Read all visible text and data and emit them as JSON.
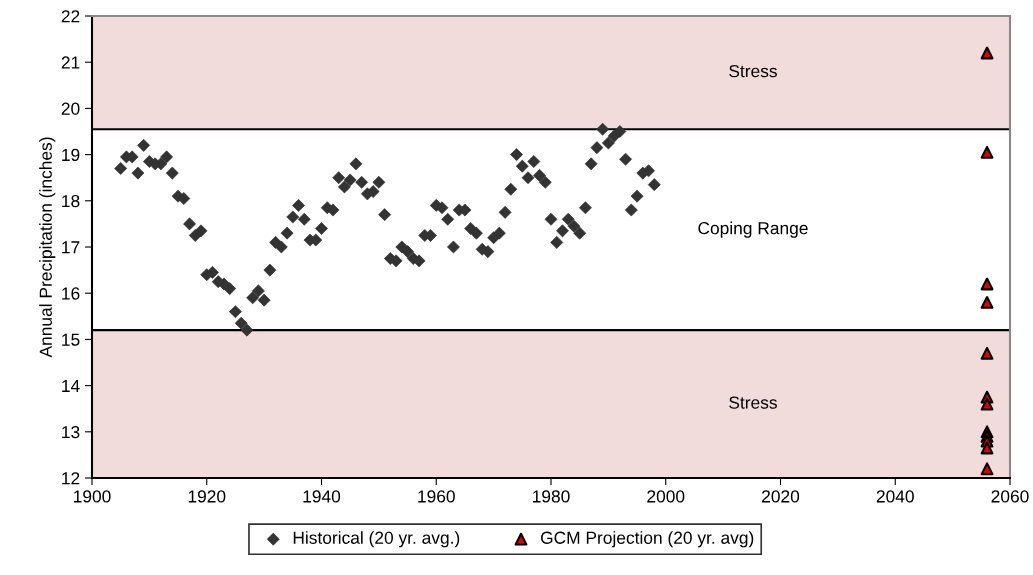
{
  "chart_data": {
    "type": "scatter",
    "ylabel": "Annual Precipitation (inches)",
    "xlim": [
      1900,
      2060
    ],
    "xticks": [
      1900,
      1920,
      1940,
      1960,
      1980,
      2000,
      2020,
      2040,
      2060
    ],
    "ylim": [
      12,
      22
    ],
    "yticks": [
      12,
      13,
      14,
      15,
      16,
      17,
      18,
      19,
      20,
      21,
      22
    ],
    "grid": false,
    "legend": "bottom",
    "annotations": [
      "Coping Range"
    ],
    "bands": [
      {
        "axis": "y",
        "from": 19.55,
        "to": 22,
        "label": "Stress",
        "color": "#f2dcdb"
      },
      {
        "axis": "y",
        "from": 12,
        "to": 15.2,
        "label": "Stress",
        "color": "#f2dcdb"
      }
    ],
    "ref_lines": [
      {
        "axis": "y",
        "value": 19.55,
        "color": "#000000",
        "line_style": "solid"
      },
      {
        "axis": "y",
        "value": 15.2,
        "color": "#000000",
        "line_style": "solid"
      }
    ],
    "series": [
      {
        "name": "Historical (20 yr. avg.)",
        "color": "#333333",
        "marker": "diamond",
        "x": [
          1905,
          1906,
          1907,
          1908,
          1909,
          1910,
          1911,
          1912,
          1913,
          1914,
          1915,
          1916,
          1917,
          1918,
          1919,
          1920,
          1921,
          1922,
          1923,
          1924,
          1925,
          1926,
          1927,
          1928,
          1929,
          1930,
          1931,
          1932,
          1933,
          1934,
          1935,
          1936,
          1937,
          1938,
          1939,
          1940,
          1941,
          1942,
          1943,
          1944,
          1945,
          1946,
          1947,
          1948,
          1949,
          1950,
          1951,
          1952,
          1953,
          1954,
          1955,
          1956,
          1957,
          1958,
          1959,
          1960,
          1961,
          1962,
          1963,
          1964,
          1965,
          1966,
          1967,
          1968,
          1969,
          1970,
          1971,
          1972,
          1973,
          1974,
          1975,
          1976,
          1977,
          1978,
          1979,
          1980,
          1981,
          1982,
          1983,
          1984,
          1985,
          1986,
          1987,
          1988,
          1989,
          1990,
          1991,
          1992,
          1993,
          1994,
          1995,
          1996,
          1997,
          1998
        ],
        "values": [
          18.7,
          18.95,
          18.95,
          18.6,
          19.2,
          18.85,
          18.8,
          18.8,
          18.95,
          18.6,
          18.1,
          18.05,
          17.5,
          17.25,
          17.35,
          16.4,
          16.45,
          16.25,
          16.2,
          16.1,
          15.6,
          15.35,
          15.2,
          15.9,
          16.05,
          15.85,
          16.5,
          17.1,
          17.0,
          17.3,
          17.65,
          17.9,
          17.6,
          17.15,
          17.15,
          17.4,
          17.85,
          17.8,
          18.5,
          18.3,
          18.45,
          18.8,
          18.4,
          18.15,
          18.2,
          18.4,
          17.7,
          16.75,
          16.7,
          17.0,
          16.9,
          16.75,
          16.7,
          17.25,
          17.25,
          17.9,
          17.85,
          17.6,
          17.0,
          17.8,
          17.8,
          17.4,
          17.3,
          16.95,
          16.9,
          17.2,
          17.3,
          17.75,
          18.25,
          19.0,
          18.75,
          18.5,
          18.85,
          18.55,
          18.4,
          17.6,
          17.1,
          17.35,
          17.6,
          17.45,
          17.3,
          17.85,
          18.8,
          19.15,
          19.55,
          19.25,
          19.4,
          19.5,
          18.9,
          17.8,
          18.1,
          18.6,
          18.65,
          18.35
        ]
      },
      {
        "name": "GCM Projection (20 yr. avg)",
        "color": "#e00000",
        "marker": "triangle",
        "x": [
          2056,
          2056,
          2056,
          2056,
          2056,
          2056,
          2056,
          2056,
          2056,
          2056,
          2056,
          2056
        ],
        "values": [
          21.2,
          19.05,
          16.2,
          15.8,
          14.7,
          13.75,
          13.6,
          13.0,
          12.9,
          12.8,
          12.65,
          12.2
        ]
      }
    ]
  }
}
